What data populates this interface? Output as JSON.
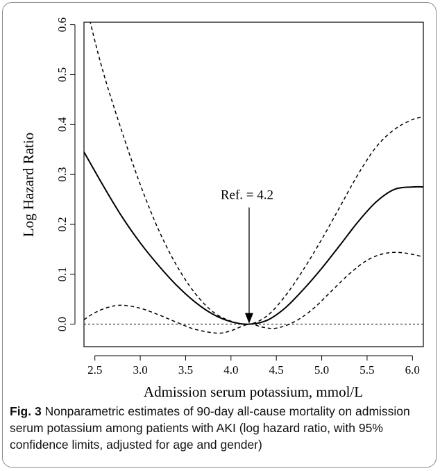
{
  "chart_data": {
    "type": "line",
    "xlabel": "Admission serum potassium, mmol/L",
    "ylabel": "Log Hazard Ratio",
    "xlim": [
      2.38,
      6.12
    ],
    "ylim": [
      -0.045,
      0.605
    ],
    "x_ticks": [
      2.5,
      3.0,
      3.5,
      4.0,
      4.5,
      5.0,
      5.5,
      6.0
    ],
    "x_tick_labels": [
      "2.5",
      "3.0",
      "3.5",
      "4.0",
      "4.5",
      "5.0",
      "5.5",
      "6.0"
    ],
    "y_ticks": [
      0.0,
      0.1,
      0.2,
      0.3,
      0.4,
      0.5,
      0.6
    ],
    "y_tick_labels": [
      "0.0",
      "0.1",
      "0.2",
      "0.3",
      "0.4",
      "0.5",
      "0.6"
    ],
    "reference_line_y": 0.0,
    "annotation": {
      "text": "Ref. = 4.2",
      "x": 4.2,
      "y": 0.0
    },
    "grid": false,
    "series": [
      {
        "role": "estimate",
        "style": "solid",
        "x": [
          2.38,
          2.6,
          2.8,
          3.0,
          3.2,
          3.4,
          3.6,
          3.8,
          4.0,
          4.2,
          4.4,
          4.6,
          4.8,
          5.0,
          5.2,
          5.4,
          5.6,
          5.8,
          6.0,
          6.12
        ],
        "y": [
          0.345,
          0.275,
          0.215,
          0.163,
          0.118,
          0.078,
          0.045,
          0.02,
          0.005,
          0.0,
          0.008,
          0.033,
          0.07,
          0.112,
          0.158,
          0.205,
          0.245,
          0.27,
          0.275,
          0.275
        ]
      },
      {
        "role": "upper 95% limit",
        "style": "dashed",
        "x": [
          2.38,
          2.45,
          2.6,
          2.8,
          3.0,
          3.2,
          3.4,
          3.6,
          3.8,
          4.0,
          4.2,
          4.4,
          4.6,
          4.8,
          5.0,
          5.2,
          5.4,
          5.6,
          5.8,
          6.0,
          6.12
        ],
        "y": [
          0.67,
          0.605,
          0.5,
          0.385,
          0.28,
          0.19,
          0.118,
          0.063,
          0.025,
          0.006,
          0.0,
          0.017,
          0.057,
          0.11,
          0.17,
          0.235,
          0.3,
          0.355,
          0.39,
          0.41,
          0.415
        ]
      },
      {
        "role": "lower 95% limit",
        "style": "dashed",
        "x": [
          2.38,
          2.5,
          2.65,
          2.8,
          3.0,
          3.2,
          3.4,
          3.6,
          3.85,
          4.0,
          4.2,
          4.35,
          4.5,
          4.7,
          4.9,
          5.1,
          5.3,
          5.5,
          5.7,
          5.9,
          6.12
        ],
        "y": [
          0.009,
          0.023,
          0.034,
          0.038,
          0.032,
          0.019,
          0.004,
          -0.01,
          -0.018,
          -0.013,
          0.0,
          -0.006,
          -0.008,
          0.005,
          0.03,
          0.065,
          0.1,
          0.128,
          0.142,
          0.143,
          0.135
        ]
      }
    ]
  },
  "caption": {
    "label": "Fig. 3",
    "text": "Nonparametric estimates of 90-day all-cause mortality on admission serum potassium among patients with AKI (log hazard ratio, with 95% confidence limits, adjusted for age and gender)"
  }
}
